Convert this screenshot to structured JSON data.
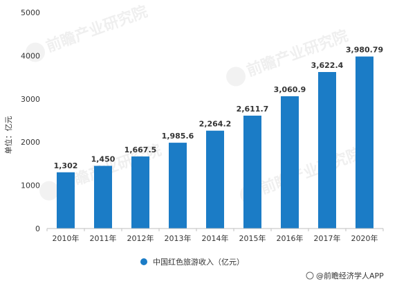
{
  "chart_data": {
    "type": "bar",
    "categories": [
      "2010年",
      "2011年",
      "2012年",
      "2013年",
      "2014年",
      "2015年",
      "2016年",
      "2017年",
      "2020年"
    ],
    "series": [
      {
        "name": "中国红色旅游收入（亿元）",
        "values": [
          1302,
          1450,
          1667.5,
          1985.6,
          2264.2,
          2611.7,
          3060.9,
          3622.4,
          3980.79
        ],
        "labels": [
          "1,302",
          "1,450",
          "1,667.5",
          "1,985.6",
          "2,264.2",
          "2,611.7",
          "3,060.9",
          "3,622.4",
          "3,980.79"
        ],
        "color": "#1b7cc6"
      }
    ],
    "ylabel": "单位：亿元",
    "ylim": [
      0,
      5000
    ],
    "yticks": [
      0,
      1000,
      2000,
      3000,
      4000,
      5000
    ],
    "grid": false,
    "legend_position": "bottom"
  },
  "source": "@前瞻经济学人APP",
  "watermark": "前瞻产业研究院",
  "colors": {
    "bar": "#1b7cc6",
    "axis": "#bfbfbf",
    "text": "#333333"
  }
}
